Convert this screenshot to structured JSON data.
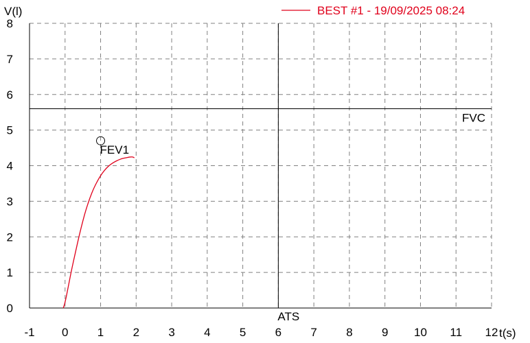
{
  "chart_data": {
    "type": "line",
    "ylabel": "V(l)",
    "xlabel": "t(s)",
    "xlim": [
      -1,
      12
    ],
    "ylim": [
      0,
      8
    ],
    "x_ticks": [
      "-1",
      "0",
      "1",
      "2",
      "3",
      "4",
      "5",
      "6",
      "7",
      "8",
      "9",
      "10",
      "11",
      "12"
    ],
    "y_ticks": [
      "0",
      "1",
      "2",
      "3",
      "4",
      "5",
      "6",
      "7",
      "8"
    ],
    "grid": true,
    "legend_position": "top-right",
    "colors": {
      "series": "#e0001b",
      "axis": "#000000",
      "grid": "#808080"
    },
    "series": [
      {
        "name": "BEST #1 - 19/09/2025  08:24",
        "x": [
          -0.05,
          0.0,
          0.1,
          0.2,
          0.3,
          0.4,
          0.5,
          0.6,
          0.7,
          0.8,
          0.9,
          1.0,
          1.1,
          1.2,
          1.3,
          1.4,
          1.5,
          1.6,
          1.7,
          1.8,
          1.9,
          1.95
        ],
        "y": [
          0.0,
          0.15,
          0.65,
          1.15,
          1.6,
          2.05,
          2.45,
          2.8,
          3.1,
          3.35,
          3.55,
          3.72,
          3.86,
          3.97,
          4.05,
          4.11,
          4.16,
          4.2,
          4.22,
          4.24,
          4.25,
          4.22
        ]
      }
    ],
    "reference_lines": [
      {
        "orientation": "horizontal",
        "value": 5.6,
        "label": "FVC"
      },
      {
        "orientation": "vertical",
        "value": 6,
        "label": "ATS"
      }
    ],
    "markers": [
      {
        "x": 1.0,
        "y": 4.7,
        "label": "FEV1",
        "shape": "circle"
      }
    ]
  }
}
